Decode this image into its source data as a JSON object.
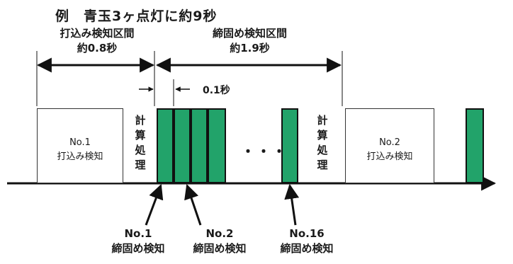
{
  "title": "例　青玉3ヶ点灯に約9秒",
  "phases": [
    {
      "name": "打込み検知区間",
      "duration": "約0.8秒"
    },
    {
      "name": "締固め検知区間",
      "duration": "約1.9秒"
    }
  ],
  "interval_label": "0.1秒",
  "boxes": [
    {
      "line1": "No.1",
      "line2": "打込み検知"
    },
    {
      "line1": "No.2",
      "line2": "打込み検知"
    }
  ],
  "calc_chars": [
    "計",
    "算",
    "処",
    "理"
  ],
  "ellipsis": "・・・",
  "captions": [
    {
      "line1": "No.1",
      "line2": "締固め検知"
    },
    {
      "line1": "No.2",
      "line2": "締固め検知"
    },
    {
      "line1": "No.16",
      "line2": "締固め検知"
    }
  ],
  "colors": {
    "pulse": "#22a36a",
    "line": "#111111"
  }
}
